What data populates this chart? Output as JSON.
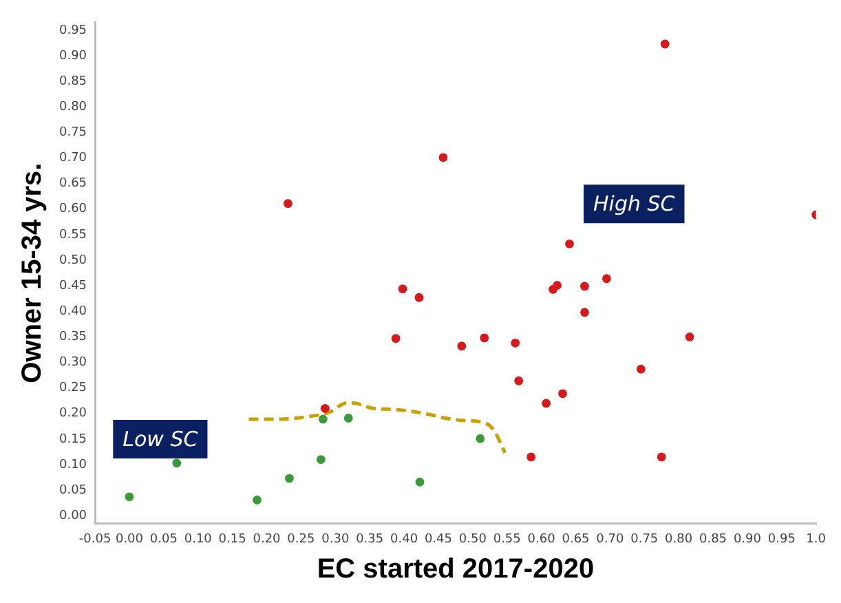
{
  "chart_data": {
    "type": "scatter",
    "xlabel": "EC started 2017-2020",
    "ylabel": "Owner 15-34 yrs.",
    "xlim": [
      -0.05,
      1.0
    ],
    "xticks": [
      {
        "value": -0.05,
        "label": "-0.05"
      },
      {
        "value": 0,
        "label": "0.00"
      },
      {
        "value": 0.05,
        "label": "0.05"
      },
      {
        "value": 0.1,
        "label": "0.10"
      },
      {
        "value": 0.15,
        "label": "0.15"
      },
      {
        "value": 0.2,
        "label": "0.20"
      },
      {
        "value": 0.25,
        "label": "0.25"
      },
      {
        "value": 0.3,
        "label": "0.30"
      },
      {
        "value": 0.35,
        "label": "0.35"
      },
      {
        "value": 0.4,
        "label": "0.40"
      },
      {
        "value": 0.45,
        "label": "0.45"
      },
      {
        "value": 0.5,
        "label": "0.50"
      },
      {
        "value": 0.55,
        "label": "0.55"
      },
      {
        "value": 0.6,
        "label": "0.60"
      },
      {
        "value": 0.65,
        "label": "0.65"
      },
      {
        "value": 0.7,
        "label": "0.70"
      },
      {
        "value": 0.75,
        "label": "0.75"
      },
      {
        "value": 0.8,
        "label": "0.80"
      },
      {
        "value": 0.85,
        "label": "0.85"
      },
      {
        "value": 0.9,
        "label": "0.90"
      },
      {
        "value": 0.95,
        "label": "0.95"
      },
      {
        "value": 1.0,
        "label": "1.0"
      }
    ],
    "ylim": [
      -0.015,
      0.965
    ],
    "yticks": [
      {
        "value": 0,
        "label": "0.00"
      },
      {
        "value": 0.05,
        "label": "0.05"
      },
      {
        "value": 0.1,
        "label": "0.10"
      },
      {
        "value": 0.15,
        "label": "0.15"
      },
      {
        "value": 0.2,
        "label": "0.20"
      },
      {
        "value": 0.25,
        "label": "0.25"
      },
      {
        "value": 0.3,
        "label": "0.30"
      },
      {
        "value": 0.35,
        "label": "0.35"
      },
      {
        "value": 0.4,
        "label": "0.40"
      },
      {
        "value": 0.45,
        "label": "0.45"
      },
      {
        "value": 0.5,
        "label": "0.50"
      },
      {
        "value": 0.55,
        "label": "0.55"
      },
      {
        "value": 0.6,
        "label": "0.60"
      },
      {
        "value": 0.65,
        "label": "0.65"
      },
      {
        "value": 0.7,
        "label": "0.70"
      },
      {
        "value": 0.75,
        "label": "0.75"
      },
      {
        "value": 0.8,
        "label": "0.80"
      },
      {
        "value": 0.85,
        "label": "0.85"
      },
      {
        "value": 0.9,
        "label": "0.90"
      },
      {
        "value": 0.95,
        "label": "0.95"
      }
    ],
    "grid": false,
    "legend": false,
    "marker": "circle",
    "annotations": [
      "Low SC",
      "High SC"
    ],
    "series": [
      {
        "color": "#d7191c",
        "x": [
          0.231,
          0.457,
          0.78,
          1.0,
          0.641,
          0.398,
          0.422,
          0.617,
          0.623,
          0.663,
          0.695,
          0.663,
          0.388,
          0.484,
          0.517,
          0.562,
          0.816,
          0.745,
          0.567,
          0.631,
          0.607,
          0.585,
          0.775,
          0.285
        ],
        "values": [
          0.611,
          0.701,
          0.923,
          0.589,
          0.532,
          0.444,
          0.427,
          0.443,
          0.451,
          0.449,
          0.464,
          0.398,
          0.347,
          0.332,
          0.348,
          0.338,
          0.35,
          0.287,
          0.264,
          0.239,
          0.22,
          0.115,
          0.115,
          0.21
        ]
      },
      {
        "color": "#3a9a3a",
        "x": [
          0.0,
          0.069,
          0.186,
          0.233,
          0.279,
          0.282,
          0.319,
          0.423,
          0.511
        ],
        "values": [
          0.037,
          0.103,
          0.031,
          0.073,
          0.11,
          0.189,
          0.191,
          0.066,
          0.151
        ]
      },
      {
        "type": "line",
        "color": "#c9a000",
        "line_style": "dashed",
        "marker": "none",
        "x": [
          0.174,
          0.217,
          0.255,
          0.292,
          0.317,
          0.33,
          0.355,
          0.387,
          0.437,
          0.456,
          0.481,
          0.51,
          0.524,
          0.532,
          0.54,
          0.547
        ],
        "values": [
          0.189,
          0.189,
          0.193,
          0.203,
          0.221,
          0.22,
          0.21,
          0.208,
          0.198,
          0.192,
          0.187,
          0.184,
          0.177,
          0.165,
          0.144,
          0.123
        ]
      }
    ]
  }
}
